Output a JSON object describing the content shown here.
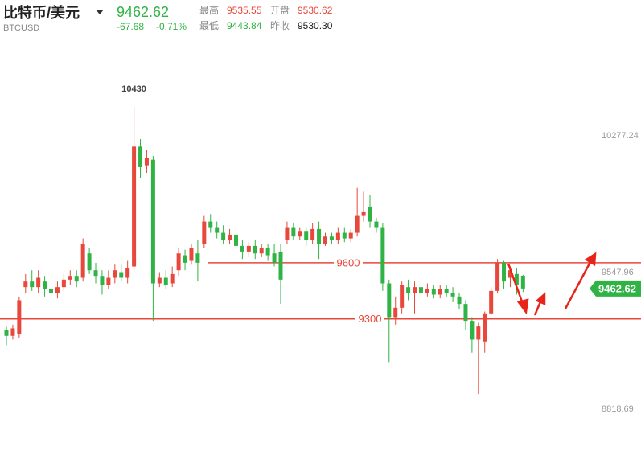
{
  "header": {
    "title": "比特币/美元",
    "symbol": "BTCUSD",
    "price": "9462.62",
    "change": "-67.68",
    "change_pct": "-0.71%",
    "stats": [
      {
        "label": "最高",
        "value": "9535.55"
      },
      {
        "label": "开盘",
        "value": "9530.62"
      },
      {
        "label": "最低",
        "value": "9443.84"
      },
      {
        "label": "昨收",
        "value": "9530.30"
      }
    ]
  },
  "chart_data": {
    "type": "candlestick",
    "open": [
      9240,
      9210,
      9220,
      9470,
      9500,
      9470,
      9500,
      9460,
      9440,
      9470,
      9510,
      9530,
      9520,
      9650,
      9560,
      9530,
      9480,
      9520,
      9550,
      9520,
      9580,
      10220,
      10120,
      10150,
      9490,
      9520,
      9490,
      9560,
      9640,
      9610,
      9650,
      9700,
      9820,
      9790,
      9760,
      9720,
      9750,
      9690,
      9660,
      9690,
      9650,
      9680,
      9650,
      9660,
      9720,
      9790,
      9740,
      9770,
      9720,
      9780,
      9700,
      9740,
      9720,
      9760,
      9730,
      9760,
      9850,
      9900,
      9820,
      9790,
      9490,
      9310,
      9360,
      9470,
      9440,
      9470,
      9440,
      9460,
      9430,
      9460,
      9440,
      9420,
      9380,
      9290,
      9190,
      9180,
      9330,
      9450,
      9600,
      9520,
      9540,
      9530.62
    ],
    "high": [
      9260,
      9270,
      9420,
      9540,
      9560,
      9560,
      9530,
      9490,
      9500,
      9540,
      9560,
      9560,
      9730,
      9680,
      9600,
      9560,
      9560,
      9590,
      9590,
      9610,
      10432,
      10260,
      10200,
      10170,
      9550,
      9560,
      9580,
      9680,
      9670,
      9700,
      9720,
      9850,
      9860,
      9820,
      9800,
      9780,
      9770,
      9720,
      9710,
      9720,
      9700,
      9700,
      9700,
      9700,
      9820,
      9810,
      9790,
      9790,
      9810,
      9820,
      9760,
      9760,
      9790,
      9790,
      9780,
      10000,
      9980,
      9960,
      9840,
      9810,
      9510,
      9420,
      9500,
      9510,
      9500,
      9490,
      9490,
      9480,
      9480,
      9480,
      9470,
      9440,
      9400,
      9310,
      9280,
      9340,
      9470,
      9620,
      9610,
      9580,
      9570,
      9535.55
    ],
    "low": [
      9160,
      9190,
      9200,
      9440,
      9450,
      9440,
      9420,
      9400,
      9410,
      9450,
      9480,
      9470,
      9500,
      9540,
      9490,
      9430,
      9460,
      9490,
      9500,
      9490,
      9560,
      10050,
      10080,
      9290,
      9470,
      9460,
      9470,
      9530,
      9560,
      9590,
      9500,
      9680,
      9760,
      9730,
      9700,
      9700,
      9620,
      9620,
      9630,
      9620,
      9630,
      9610,
      9580,
      9380,
      9700,
      9720,
      9720,
      9690,
      9700,
      9620,
      9690,
      9700,
      9700,
      9710,
      9710,
      9740,
      9820,
      9790,
      9760,
      9450,
      9070,
      9270,
      9330,
      9400,
      9330,
      9410,
      9420,
      9410,
      9410,
      9420,
      9390,
      9350,
      9240,
      9120,
      8900,
      9120,
      9320,
      9440,
      9460,
      9470,
      9430,
      9443.84
    ],
    "close": [
      9210,
      9250,
      9400,
      9500,
      9470,
      9520,
      9460,
      9440,
      9470,
      9510,
      9530,
      9500,
      9700,
      9560,
      9530,
      9480,
      9520,
      9560,
      9520,
      9570,
      10220,
      10110,
      10160,
      9490,
      9520,
      9480,
      9540,
      9650,
      9600,
      9680,
      9600,
      9820,
      9790,
      9760,
      9720,
      9750,
      9690,
      9660,
      9690,
      9650,
      9680,
      9640,
      9600,
      9510,
      9790,
      9740,
      9770,
      9720,
      9780,
      9700,
      9740,
      9720,
      9760,
      9730,
      9760,
      9850,
      9870,
      9820,
      9790,
      9490,
      9310,
      9360,
      9480,
      9440,
      9470,
      9440,
      9460,
      9430,
      9460,
      9440,
      9420,
      9380,
      9290,
      9190,
      9260,
      9330,
      9450,
      9600,
      9500,
      9560,
      9480,
      9462.62
    ],
    "up_color": "#e8473b",
    "down_color": "#2fb344",
    "ylim": [
      8685.69,
      10744.84
    ],
    "yticks": [
      8818.69,
      9547.96,
      10277.24
    ],
    "grid": false,
    "hlines": [
      9600,
      9300
    ],
    "hline_color": "#e8473b",
    "max_label": 10430,
    "last_price": 9462.62
  }
}
